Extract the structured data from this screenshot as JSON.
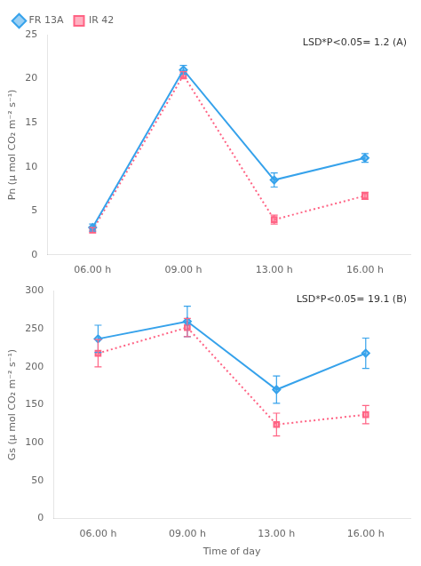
{
  "chart_data": [
    {
      "type": "line",
      "categories": [
        "06.00 h",
        "09.00 h",
        "13.00 h",
        "16.00 h"
      ],
      "series": [
        {
          "name": "FR 13A",
          "values": [
            3.1,
            21.0,
            8.5,
            11.0
          ],
          "errors": [
            0.4,
            0.5,
            0.8,
            0.5
          ],
          "marker": "diamond",
          "line_style": "solid"
        },
        {
          "name": "IR 42",
          "values": [
            2.8,
            20.4,
            4.0,
            6.7
          ],
          "errors": [
            0.3,
            0.4,
            0.5,
            0.4
          ],
          "marker": "square",
          "line_style": "dotted"
        }
      ],
      "ylabel": "Pn (μ mol CO₂ m⁻² s⁻¹)",
      "ylim": [
        0,
        25
      ],
      "yticks": [
        0,
        5,
        10,
        15,
        20,
        25
      ],
      "annotation": "LSD*P<0.05= 1.2 (A)",
      "legend": "upper left",
      "grid": false
    },
    {
      "type": "line",
      "categories": [
        "06.00 h",
        "09.00 h",
        "13.00 h",
        "16.00 h"
      ],
      "series": [
        {
          "name": "FR 13A",
          "values": [
            237,
            260,
            170,
            218
          ],
          "errors": [
            18,
            20,
            18,
            20
          ],
          "marker": "diamond",
          "line_style": "solid"
        },
        {
          "name": "IR 42",
          "values": [
            218,
            252,
            124,
            137
          ],
          "errors": [
            18,
            12,
            15,
            12
          ],
          "marker": "square",
          "line_style": "dotted"
        }
      ],
      "ylabel": "Gs (μ mol CO₂ m⁻² s⁻¹)",
      "xlabel": "Time of day",
      "ylim": [
        0,
        300
      ],
      "yticks": [
        0,
        50,
        100,
        150,
        200,
        250,
        300
      ],
      "annotation": "LSD*P<0.05= 19.1 (B)",
      "grid": false
    }
  ]
}
